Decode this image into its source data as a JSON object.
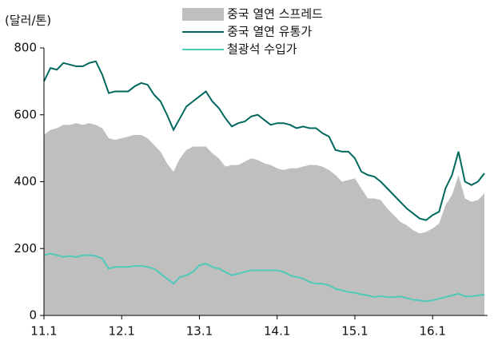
{
  "chart_data": {
    "type": "area-line",
    "y_label": "(달러/톤)",
    "categories": [
      "11.1",
      null,
      null,
      null,
      null,
      null,
      null,
      null,
      null,
      null,
      null,
      null,
      "12.1",
      null,
      null,
      null,
      null,
      null,
      null,
      null,
      null,
      null,
      null,
      null,
      "13.1",
      null,
      null,
      null,
      null,
      null,
      null,
      null,
      null,
      null,
      null,
      null,
      "14.1",
      null,
      null,
      null,
      null,
      null,
      null,
      null,
      null,
      null,
      null,
      null,
      "15.1",
      null,
      null,
      null,
      null,
      null,
      null,
      null,
      null,
      null,
      null,
      null,
      "16.1",
      null,
      null,
      null,
      null,
      null,
      null,
      null,
      null
    ],
    "series": [
      {
        "name": "중국 열연 스프레드",
        "kind": "area",
        "color": "#bfbfbf",
        "values": [
          540,
          555,
          560,
          570,
          570,
          575,
          570,
          575,
          570,
          560,
          530,
          525,
          530,
          535,
          540,
          540,
          530,
          510,
          490,
          455,
          430,
          470,
          495,
          505,
          505,
          505,
          485,
          470,
          445,
          450,
          450,
          460,
          470,
          465,
          455,
          450,
          440,
          435,
          440,
          440,
          445,
          450,
          450,
          445,
          435,
          420,
          400,
          405,
          410,
          380,
          350,
          350,
          345,
          320,
          300,
          280,
          270,
          255,
          245,
          250,
          260,
          275,
          330,
          360,
          420,
          350,
          340,
          345,
          365
        ]
      },
      {
        "name": "중국 열연 유통가",
        "kind": "line",
        "color": "#00685e",
        "values": [
          700,
          740,
          735,
          755,
          750,
          745,
          745,
          755,
          760,
          720,
          665,
          670,
          670,
          670,
          685,
          695,
          690,
          660,
          640,
          600,
          555,
          590,
          625,
          640,
          655,
          670,
          640,
          620,
          590,
          565,
          575,
          580,
          595,
          600,
          585,
          570,
          575,
          575,
          570,
          560,
          565,
          560,
          560,
          545,
          535,
          495,
          490,
          490,
          470,
          430,
          420,
          415,
          400,
          380,
          360,
          340,
          320,
          305,
          290,
          285,
          300,
          310,
          380,
          420,
          490,
          400,
          390,
          400,
          425
        ]
      },
      {
        "name": "철광석 수입가",
        "kind": "line",
        "color": "#4fc9b8",
        "values": [
          180,
          185,
          180,
          175,
          178,
          175,
          180,
          180,
          178,
          170,
          140,
          145,
          145,
          145,
          148,
          148,
          145,
          140,
          125,
          110,
          95,
          115,
          120,
          130,
          150,
          155,
          145,
          140,
          130,
          120,
          125,
          130,
          135,
          135,
          135,
          135,
          135,
          130,
          120,
          115,
          110,
          100,
          95,
          95,
          90,
          80,
          75,
          70,
          68,
          63,
          60,
          55,
          58,
          55,
          55,
          57,
          52,
          47,
          45,
          42,
          45,
          50,
          55,
          60,
          65,
          57,
          57,
          60,
          62
        ]
      }
    ],
    "ylim": [
      0,
      800
    ],
    "yticks": [
      0,
      200,
      400,
      600,
      800
    ]
  }
}
